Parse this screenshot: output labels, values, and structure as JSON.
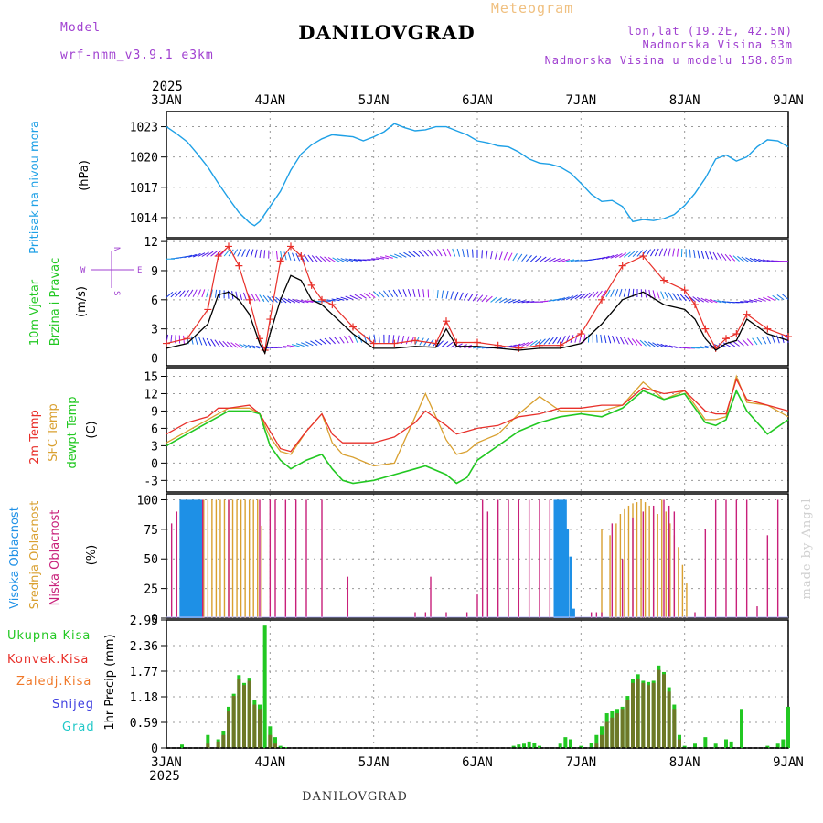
{
  "header": {
    "model_label": "Model",
    "model_name": "wrf-nmm_v3.9.1 e3km",
    "title": "DANILOVGRAD",
    "subtitle": "Meteogram",
    "lonlat": "lon,lat (19.2E, 42.5N)",
    "elev": "Nadmorska Visina 53m",
    "elev_model": "Nadmorska Visina u modelu 158.85m"
  },
  "footer": {
    "station": "DANILOVGRAD",
    "credit": "made by Angel"
  },
  "colors": {
    "pressure": "#1ea0e6",
    "wind_speed": "#000000",
    "gust": "#e8302a",
    "temp2m": "#e8302a",
    "sfc": "#d9a030",
    "dewpt": "#22c822",
    "high_cloud": "#1e90e6",
    "mid_cloud": "#d9a030",
    "low_cloud": "#c8207a",
    "precip_total": "#22c822",
    "precip_conv": "#e8302a",
    "precip_frozen": "#f07828",
    "snow": "#4040e0",
    "hail": "#20c8c8",
    "wind_purple": "#9030e0"
  },
  "chart_data": [
    {
      "type": "line",
      "name": "pressure",
      "ylabel_blue": "Pritisak na nivou mora",
      "ylabel_unit": "(hPa)",
      "x_start_label": "2025",
      "x_end_label": "2025",
      "x_days": [
        "3JAN",
        "4JAN",
        "5JAN",
        "6JAN",
        "7JAN",
        "8JAN",
        "9JAN"
      ],
      "yticks": [
        "1014",
        "1017",
        "1020",
        "1023"
      ],
      "ylim": [
        1012,
        1024.5
      ],
      "x": [
        0,
        0.1,
        0.2,
        0.3,
        0.4,
        0.5,
        0.6,
        0.7,
        0.8,
        0.85,
        0.9,
        1.0,
        1.1,
        1.2,
        1.3,
        1.4,
        1.5,
        1.6,
        1.7,
        1.8,
        1.9,
        2.0,
        2.1,
        2.2,
        2.3,
        2.4,
        2.5,
        2.6,
        2.7,
        2.8,
        2.9,
        3.0,
        3.1,
        3.2,
        3.3,
        3.4,
        3.5,
        3.6,
        3.7,
        3.8,
        3.9,
        4.0,
        4.1,
        4.2,
        4.3,
        4.4,
        4.5,
        4.6,
        4.7,
        4.8,
        4.9,
        5.0,
        5.1,
        5.2,
        5.3,
        5.4,
        5.5,
        5.6,
        5.7,
        5.8,
        5.9,
        6.0
      ],
      "values": [
        1023.0,
        1022.3,
        1021.5,
        1020.3,
        1019.0,
        1017.4,
        1015.9,
        1014.5,
        1013.5,
        1013.2,
        1013.6,
        1015.1,
        1016.6,
        1018.7,
        1020.3,
        1021.2,
        1021.8,
        1022.2,
        1022.1,
        1022.0,
        1021.6,
        1022.0,
        1022.5,
        1023.3,
        1022.9,
        1022.6,
        1022.7,
        1023.0,
        1023.0,
        1022.6,
        1022.2,
        1021.6,
        1021.4,
        1021.1,
        1021.0,
        1020.5,
        1019.8,
        1019.4,
        1019.3,
        1019.0,
        1018.4,
        1017.4,
        1016.3,
        1015.6,
        1015.7,
        1015.1,
        1013.6,
        1013.8,
        1013.7,
        1013.9,
        1014.3,
        1015.2,
        1016.4,
        1017.9,
        1019.8,
        1020.2,
        1019.6,
        1020.0,
        1021.0,
        1021.7,
        1021.6,
        1021.0
      ]
    },
    {
      "type": "line",
      "name": "wind",
      "ylabel_green": "10m Vjetar",
      "ylabel_green2": "Brzina i Pravac",
      "ylabel_unit": "(m/s)",
      "compass": {
        "north": "N",
        "south": "S",
        "west": "W",
        "east": "E"
      },
      "yticks": [
        "0",
        "3",
        "6",
        "9",
        "12"
      ],
      "ylim": [
        -0.8,
        12.2
      ],
      "x": [
        0,
        0.2,
        0.4,
        0.5,
        0.6,
        0.7,
        0.8,
        0.9,
        0.95,
        1.0,
        1.1,
        1.2,
        1.3,
        1.4,
        1.5,
        1.6,
        1.8,
        2.0,
        2.2,
        2.4,
        2.6,
        2.7,
        2.8,
        3.0,
        3.2,
        3.4,
        3.6,
        3.8,
        4.0,
        4.2,
        4.4,
        4.6,
        4.8,
        5.0,
        5.1,
        5.2,
        5.3,
        5.4,
        5.5,
        5.6,
        5.8,
        6.0
      ],
      "series": [
        {
          "name": "speed",
          "values": [
            1.0,
            1.5,
            3.5,
            6.5,
            6.8,
            6.0,
            4.5,
            1.5,
            0.5,
            2.5,
            6.0,
            8.5,
            8.0,
            6.0,
            5.5,
            4.5,
            2.5,
            1.0,
            1.0,
            1.2,
            1.1,
            3.0,
            1.2,
            1.2,
            1.0,
            0.8,
            1.0,
            1.0,
            1.5,
            3.5,
            6.0,
            6.8,
            5.5,
            5.0,
            4.0,
            2.0,
            0.8,
            1.5,
            1.8,
            4.0,
            2.5,
            1.8
          ]
        },
        {
          "name": "gust",
          "values": [
            1.5,
            2.0,
            5.0,
            10.5,
            11.5,
            9.5,
            6.0,
            2.0,
            0.8,
            4.0,
            10.0,
            11.5,
            10.5,
            7.5,
            6.0,
            5.5,
            3.2,
            1.5,
            1.5,
            1.8,
            1.5,
            3.8,
            1.6,
            1.6,
            1.3,
            1.0,
            1.3,
            1.3,
            2.5,
            6.0,
            9.5,
            10.5,
            8.0,
            7.0,
            5.5,
            3.0,
            1.0,
            2.0,
            2.5,
            4.5,
            3.0,
            2.2
          ]
        }
      ]
    },
    {
      "type": "line",
      "name": "temperature",
      "ylabel_red": "2m Temp",
      "ylabel_orange": "SFC Temp",
      "ylabel_green": "dewpt Temp",
      "ylabel_unit": "(C)",
      "yticks": [
        "-3",
        "0",
        "3",
        "6",
        "9",
        "12",
        "15"
      ],
      "ylim": [
        -5,
        16.5
      ],
      "x": [
        0,
        0.2,
        0.4,
        0.5,
        0.6,
        0.8,
        0.9,
        1.0,
        1.1,
        1.2,
        1.35,
        1.5,
        1.6,
        1.7,
        1.8,
        2.0,
        2.2,
        2.4,
        2.5,
        2.7,
        2.8,
        2.9,
        3.0,
        3.2,
        3.4,
        3.6,
        3.8,
        4.0,
        4.2,
        4.4,
        4.6,
        4.8,
        5.0,
        5.2,
        5.3,
        5.4,
        5.5,
        5.6,
        5.8,
        6.0
      ],
      "series": [
        {
          "name": "2m Temp",
          "values": [
            5.0,
            7.0,
            8.0,
            9.5,
            9.5,
            10.0,
            8.5,
            5.5,
            2.5,
            2.0,
            5.5,
            8.5,
            5.0,
            3.5,
            3.5,
            3.5,
            4.5,
            7.0,
            9.0,
            6.5,
            5.0,
            5.5,
            6.0,
            6.5,
            8.0,
            8.5,
            9.5,
            9.5,
            10.0,
            10.0,
            13.0,
            12.0,
            12.5,
            9.0,
            8.5,
            8.5,
            14.5,
            11.0,
            10.0,
            9.0
          ]
        },
        {
          "name": "SFC Temp",
          "values": [
            3.5,
            5.5,
            7.5,
            8.5,
            9.5,
            9.5,
            8.5,
            4.5,
            2.0,
            1.5,
            5.5,
            8.5,
            3.5,
            1.5,
            1.0,
            -0.5,
            0.0,
            8.0,
            12.0,
            4.0,
            1.5,
            2.0,
            3.5,
            5.0,
            8.5,
            11.5,
            9.0,
            9.0,
            9.0,
            10.0,
            14.0,
            11.0,
            12.5,
            7.5,
            7.5,
            8.0,
            15.0,
            10.5,
            10.0,
            8.0
          ]
        },
        {
          "name": "dewpt Temp",
          "values": [
            3.0,
            5.0,
            7.0,
            8.0,
            9.0,
            9.0,
            8.5,
            3.0,
            0.5,
            -1.0,
            0.5,
            1.5,
            -1.0,
            -3.0,
            -3.5,
            -3.0,
            -2.0,
            -1.0,
            -0.5,
            -2.0,
            -3.5,
            -2.5,
            0.5,
            3.0,
            5.5,
            7.0,
            8.0,
            8.5,
            8.0,
            9.5,
            12.5,
            11.0,
            12.0,
            7.0,
            6.5,
            7.5,
            12.5,
            9.0,
            5.0,
            7.5
          ]
        }
      ]
    },
    {
      "type": "bar",
      "name": "clouds",
      "ylabel_blue": "Visoka Oblacnost",
      "ylabel_orange": "Srednja Oblacnost",
      "ylabel_magenta": "Niska Oblacnost",
      "ylabel_unit": "(%)",
      "yticks": [
        "0",
        "25",
        "50",
        "75",
        "100"
      ],
      "ylim": [
        0,
        105
      ],
      "series": [
        {
          "name": "high",
          "x": [
            0.14,
            0.16,
            0.18,
            0.2,
            0.22,
            0.24,
            0.26,
            0.28,
            0.3,
            0.32,
            0.34,
            3.75,
            3.77,
            3.79,
            3.81,
            3.83,
            3.85,
            3.87,
            3.9,
            3.93
          ],
          "values": [
            100,
            100,
            100,
            100,
            100,
            100,
            100,
            100,
            100,
            100,
            100,
            100,
            100,
            100,
            100,
            100,
            100,
            75,
            52,
            8
          ]
        },
        {
          "name": "mid",
          "x": [
            0.36,
            0.4,
            0.44,
            0.48,
            0.52,
            0.56,
            0.6,
            0.64,
            0.68,
            0.72,
            0.76,
            0.8,
            0.84,
            0.88,
            0.92,
            4.2,
            4.28,
            4.34,
            4.38,
            4.42,
            4.46,
            4.5,
            4.54,
            4.58,
            4.62,
            4.66,
            4.7,
            4.74,
            4.78,
            4.82,
            4.86,
            4.9,
            4.94,
            4.98,
            5.02
          ],
          "values": [
            100,
            100,
            100,
            100,
            100,
            100,
            100,
            100,
            100,
            100,
            100,
            100,
            100,
            100,
            78,
            75,
            70,
            80,
            88,
            92,
            95,
            97,
            98,
            100,
            98,
            95,
            92,
            88,
            100,
            90,
            80,
            70,
            60,
            45,
            30
          ]
        },
        {
          "name": "low",
          "x": [
            0.05,
            0.1,
            0.35,
            0.6,
            0.9,
            1.0,
            1.05,
            1.15,
            1.25,
            1.35,
            1.5,
            1.75,
            2.4,
            2.5,
            2.55,
            2.7,
            2.9,
            3.0,
            3.05,
            3.1,
            3.2,
            3.3,
            3.4,
            3.5,
            3.6,
            3.7,
            4.1,
            4.15,
            4.2,
            4.3,
            4.4,
            4.5,
            4.6,
            4.7,
            4.8,
            4.85,
            4.9,
            5.1,
            5.2,
            5.3,
            5.4,
            5.5,
            5.6,
            5.7,
            5.8,
            5.9
          ],
          "values": [
            80,
            90,
            100,
            100,
            100,
            100,
            100,
            100,
            100,
            100,
            100,
            35,
            5,
            5,
            35,
            5,
            5,
            20,
            100,
            90,
            100,
            100,
            100,
            100,
            100,
            100,
            5,
            5,
            5,
            80,
            50,
            85,
            90,
            95,
            100,
            95,
            90,
            5,
            75,
            100,
            100,
            100,
            100,
            10,
            70,
            100
          ]
        }
      ]
    },
    {
      "type": "bar",
      "name": "precip",
      "ylabel_unit": "1hr Precip (mm)",
      "yticks": [
        "0",
        "0.59",
        "1.18",
        "1.77",
        "2.36",
        "2.95"
      ],
      "ylim": [
        0,
        2.95
      ],
      "legend": [
        "Ukupna Kisa",
        "Konvek.Kisa",
        "Zaledj.Kisa",
        "Snijeg",
        "Grad"
      ],
      "x": [
        0.15,
        0.4,
        0.5,
        0.55,
        0.6,
        0.65,
        0.7,
        0.75,
        0.8,
        0.85,
        0.9,
        0.95,
        1.0,
        1.05,
        1.1,
        1.15,
        3.35,
        3.4,
        3.45,
        3.5,
        3.55,
        3.6,
        3.8,
        3.85,
        3.9,
        4.0,
        4.1,
        4.15,
        4.2,
        4.25,
        4.3,
        4.35,
        4.4,
        4.45,
        4.5,
        4.55,
        4.6,
        4.65,
        4.7,
        4.75,
        4.8,
        4.85,
        4.9,
        4.95,
        5.0,
        5.1,
        5.2,
        5.3,
        5.4,
        5.45,
        5.55,
        5.8,
        5.9,
        5.95,
        6.0
      ],
      "series": [
        {
          "name": "total",
          "values": [
            0.08,
            0.3,
            0.2,
            0.4,
            0.95,
            1.25,
            1.68,
            1.5,
            1.62,
            1.1,
            1.0,
            2.82,
            0.5,
            0.25,
            0.05,
            0.02,
            0.05,
            0.08,
            0.1,
            0.15,
            0.12,
            0.05,
            0.1,
            0.25,
            0.2,
            0.05,
            0.12,
            0.3,
            0.5,
            0.8,
            0.85,
            0.9,
            0.95,
            1.2,
            1.6,
            1.7,
            1.55,
            1.52,
            1.55,
            1.9,
            1.75,
            1.4,
            1.0,
            0.3,
            0.05,
            0.1,
            0.25,
            0.1,
            0.2,
            0.15,
            0.9,
            0.05,
            0.1,
            0.2,
            0.95
          ]
        },
        {
          "name": "convective",
          "values": [
            0,
            0.1,
            0.15,
            0.3,
            0.85,
            1.2,
            1.6,
            1.45,
            1.55,
            1.0,
            0.9,
            0,
            0.3,
            0.1,
            0,
            0,
            0,
            0,
            0,
            0,
            0,
            0,
            0,
            0,
            0,
            0,
            0,
            0.1,
            0.3,
            0.6,
            0.7,
            0.8,
            0.9,
            1.1,
            1.5,
            1.6,
            1.5,
            1.45,
            1.5,
            1.8,
            1.7,
            1.3,
            0.9,
            0.2,
            0,
            0,
            0,
            0,
            0,
            0,
            0,
            0,
            0,
            0,
            0
          ]
        }
      ]
    }
  ]
}
